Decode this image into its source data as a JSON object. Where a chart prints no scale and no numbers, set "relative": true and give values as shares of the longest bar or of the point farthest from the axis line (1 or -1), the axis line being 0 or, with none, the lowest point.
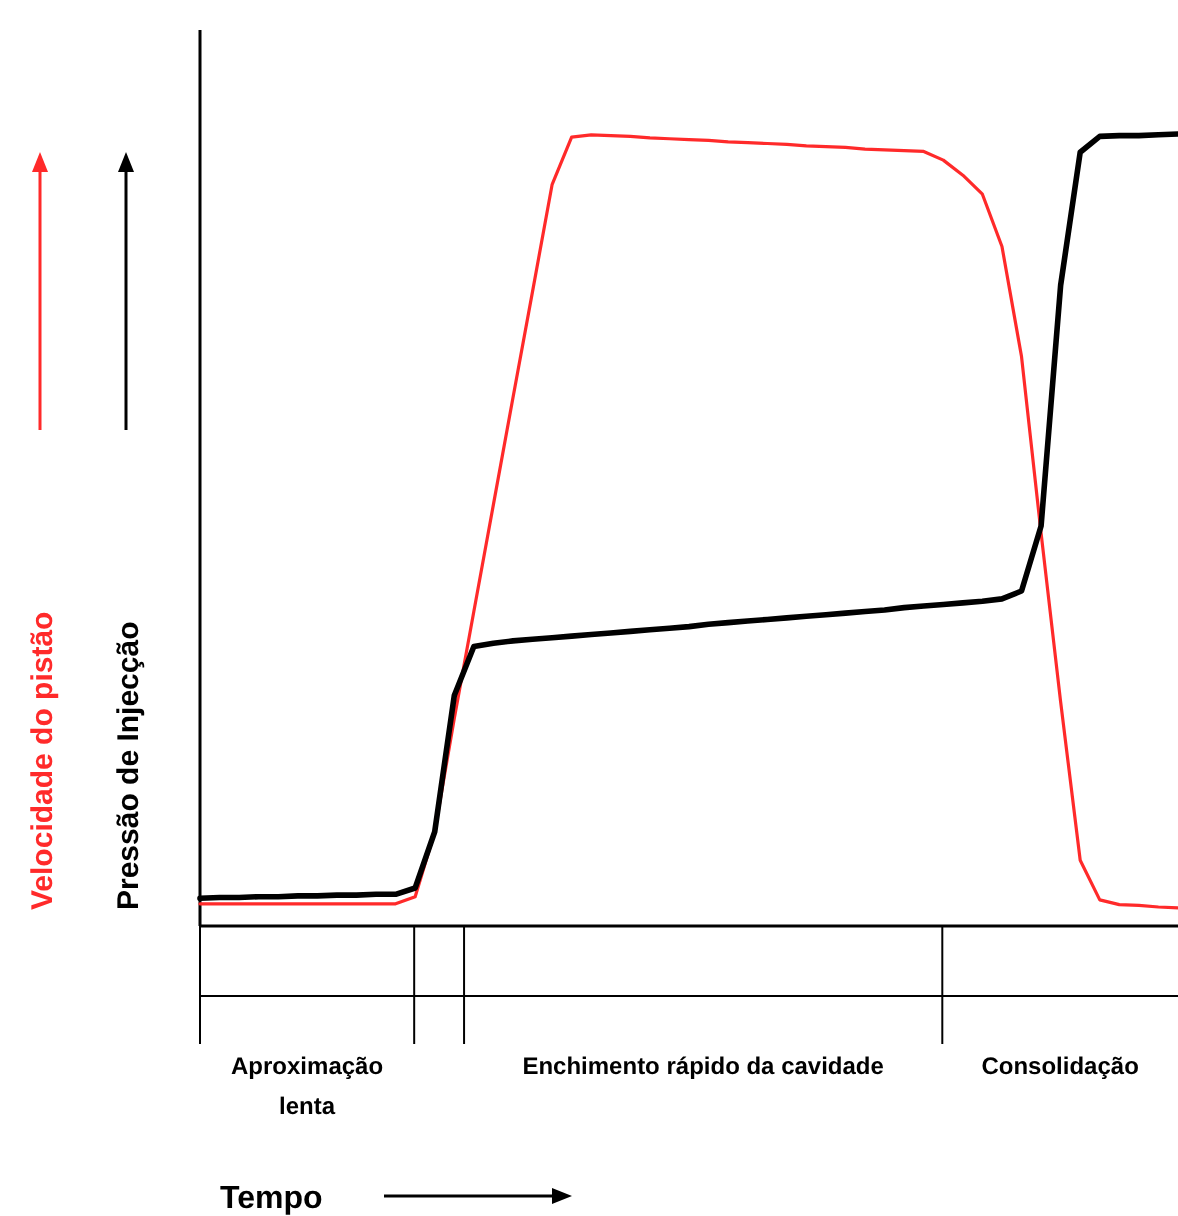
{
  "chart_data": {
    "type": "line",
    "relative": true,
    "line_style": "solid",
    "categories": [
      null,
      null,
      null,
      null,
      null,
      null,
      null,
      null,
      null,
      null,
      null,
      null,
      null,
      null,
      null,
      null,
      null,
      null,
      null,
      null,
      null,
      null,
      null,
      null,
      null,
      null,
      null,
      null,
      null,
      null,
      null,
      null,
      null,
      null,
      null,
      null,
      null,
      null,
      null,
      null,
      null,
      null,
      null,
      null,
      null,
      null,
      null,
      null,
      null,
      null,
      null
    ],
    "series": [
      {
        "name": "Velocidade do pistão",
        "color": "#ff2a2a",
        "values": [
          0.028,
          0.028,
          0.028,
          0.028,
          0.028,
          0.028,
          0.028,
          0.028,
          0.028,
          0.028,
          0.028,
          0.037,
          0.119,
          0.262,
          0.397,
          0.532,
          0.667,
          0.801,
          0.936,
          0.996,
          0.999,
          0.998,
          0.997,
          0.995,
          0.994,
          0.993,
          0.992,
          0.99,
          0.989,
          0.988,
          0.987,
          0.985,
          0.984,
          0.983,
          0.981,
          0.98,
          0.979,
          0.978,
          0.967,
          0.948,
          0.924,
          0.858,
          0.719,
          0.496,
          0.283,
          0.083,
          0.033,
          0.027,
          0.026,
          0.024,
          0.023
        ]
      },
      {
        "name": "Pressão de Injecção",
        "color": "#000000",
        "values": [
          0.035,
          0.036,
          0.036,
          0.037,
          0.037,
          0.038,
          0.038,
          0.039,
          0.039,
          0.04,
          0.04,
          0.048,
          0.119,
          0.291,
          0.353,
          0.357,
          0.36,
          0.362,
          0.364,
          0.366,
          0.368,
          0.37,
          0.372,
          0.374,
          0.376,
          0.378,
          0.381,
          0.383,
          0.385,
          0.387,
          0.389,
          0.391,
          0.393,
          0.395,
          0.397,
          0.399,
          0.402,
          0.404,
          0.406,
          0.408,
          0.41,
          0.413,
          0.423,
          0.505,
          0.809,
          0.977,
          0.997,
          0.998,
          0.998,
          0.999,
          1
        ]
      }
    ],
    "annotations": [
      "Aproximação lenta",
      "Enchimento rápido da cavidade",
      "Consolidação",
      "Tempo"
    ]
  }
}
